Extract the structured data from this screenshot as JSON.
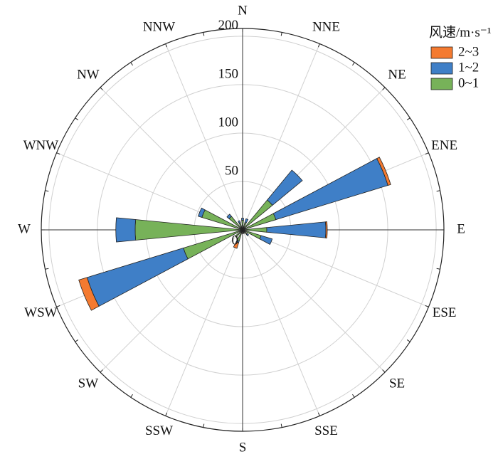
{
  "chart_data": {
    "type": "windrose",
    "categories": [
      "N",
      "NNE",
      "NE",
      "ENE",
      "E",
      "ESE",
      "SE",
      "SSE",
      "S",
      "SSW",
      "SW",
      "WSW",
      "W",
      "WNW",
      "NW",
      "NNW"
    ],
    "series": [
      {
        "name": "2~3",
        "color": "#f47a30",
        "values": [
          0,
          0,
          0,
          3,
          1.5,
          0,
          0,
          0,
          0,
          6,
          0,
          9,
          0,
          0,
          0,
          0
        ]
      },
      {
        "name": "1~2",
        "color": "#3f7fc7",
        "values": [
          2,
          4,
          40,
          121,
          61,
          12,
          2,
          0,
          0,
          2,
          0,
          104,
          20,
          4,
          3,
          2
        ]
      },
      {
        "name": "0~1",
        "color": "#77b259",
        "values": [
          10,
          8,
          40,
          36,
          25,
          20,
          6,
          4,
          4,
          12,
          10,
          64,
          111,
          44,
          18,
          8
        ]
      }
    ],
    "legend_title": "风速/m·s⁻¹",
    "ylim": [
      0,
      208
    ],
    "yticks": [
      0,
      50,
      100,
      150,
      200
    ],
    "grid": true
  }
}
